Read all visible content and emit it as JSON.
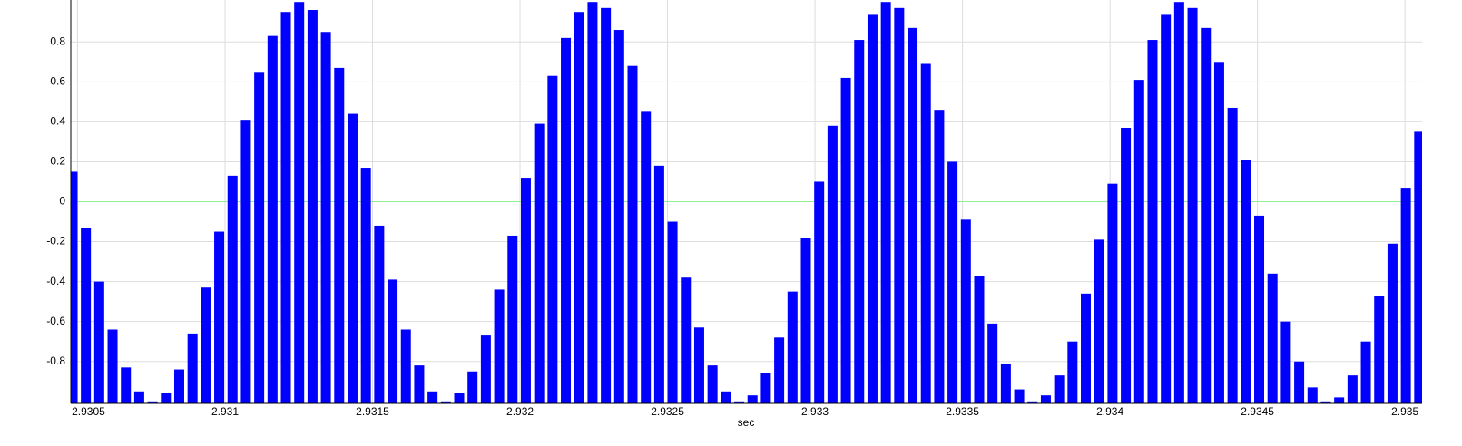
{
  "chart_data": {
    "type": "bar",
    "x_label": "sec",
    "color": "#0000ff",
    "grid": true,
    "zero_line_color": "#90ee90",
    "xlim": [
      2.930477,
      2.935058
    ],
    "ylim": [
      -1.01,
      1.01
    ],
    "xticks": [
      2.9305,
      2.931,
      2.9315,
      2.932,
      2.9325,
      2.933,
      2.9335,
      2.934,
      2.9345,
      2.935
    ],
    "yticks": [
      -0.8,
      -0.6,
      -0.4,
      -0.2,
      0,
      0.2,
      0.4,
      0.6,
      0.8
    ],
    "x": [
      2.930483,
      2.9305282,
      2.9305734,
      2.9306186,
      2.9306638,
      2.930709,
      2.9307542,
      2.9307994,
      2.9308446,
      2.9308898,
      2.930935,
      2.9309802,
      2.9310254,
      2.9310706,
      2.9311158,
      2.931161,
      2.9312062,
      2.9312514,
      2.9312966,
      2.9313418,
      2.931387,
      2.9314322,
      2.9314774,
      2.9315226,
      2.9315678,
      2.931613,
      2.9316582,
      2.9317034,
      2.9317486,
      2.9317938,
      2.931839,
      2.9318842,
      2.9319294,
      2.9319746,
      2.9320198,
      2.932065,
      2.9321102,
      2.9321554,
      2.9322006,
      2.9322458,
      2.932291,
      2.9323362,
      2.9323814,
      2.9324266,
      2.9324718,
      2.932517,
      2.9325622,
      2.9326074,
      2.9326526,
      2.9326978,
      2.932743,
      2.9327882,
      2.9328334,
      2.9328786,
      2.9329238,
      2.932969,
      2.9330142,
      2.9330594,
      2.9331046,
      2.9331498,
      2.933195,
      2.9332402,
      2.9332854,
      2.9333306,
      2.9333758,
      2.933421,
      2.9334662,
      2.9335114,
      2.9335566,
      2.9336018,
      2.933647,
      2.9336922,
      2.9337374,
      2.9337826,
      2.9338278,
      2.933873,
      2.9339182,
      2.9339634,
      2.9340086,
      2.9340538,
      2.934099,
      2.9341442,
      2.9341894,
      2.9342346,
      2.9342798,
      2.934325,
      2.9343702,
      2.9344154,
      2.9344606,
      2.9345058,
      2.934551,
      2.9345962,
      2.9346414,
      2.9346866,
      2.9347318,
      2.934777,
      2.9348222,
      2.9348674,
      2.9349126,
      2.9349578,
      2.935003,
      2.9350482
    ],
    "values": [
      0.15,
      -0.13,
      -0.4,
      -0.64,
      -0.83,
      -0.95,
      -1.0,
      -0.96,
      -0.84,
      -0.66,
      -0.43,
      -0.15,
      0.13,
      0.41,
      0.65,
      0.83,
      0.95,
      1.0,
      0.96,
      0.85,
      0.67,
      0.44,
      0.17,
      -0.12,
      -0.39,
      -0.64,
      -0.82,
      -0.95,
      -1.0,
      -0.96,
      -0.85,
      -0.67,
      -0.44,
      -0.17,
      0.12,
      0.39,
      0.63,
      0.82,
      0.95,
      1.0,
      0.97,
      0.86,
      0.68,
      0.45,
      0.18,
      -0.1,
      -0.38,
      -0.63,
      -0.82,
      -0.95,
      -1.0,
      -0.97,
      -0.86,
      -0.68,
      -0.45,
      -0.18,
      0.1,
      0.38,
      0.62,
      0.81,
      0.94,
      1.0,
      0.97,
      0.87,
      0.69,
      0.46,
      0.2,
      -0.09,
      -0.37,
      -0.61,
      -0.81,
      -0.94,
      -1.0,
      -0.97,
      -0.87,
      -0.7,
      -0.46,
      -0.19,
      0.09,
      0.37,
      0.61,
      0.81,
      0.94,
      1.0,
      0.97,
      0.87,
      0.7,
      0.47,
      0.21,
      -0.07,
      -0.36,
      -0.6,
      -0.8,
      -0.93,
      -1.0,
      -0.98,
      -0.87,
      -0.7,
      -0.47,
      -0.21,
      0.07,
      0.35
    ]
  }
}
